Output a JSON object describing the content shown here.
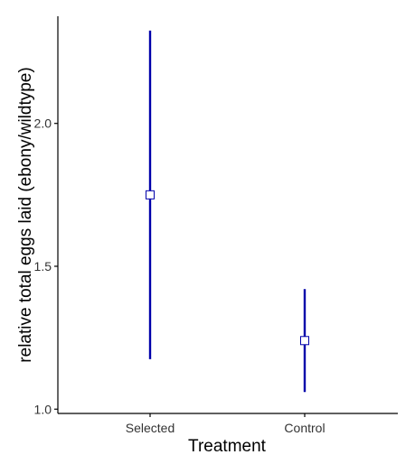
{
  "chart_data": {
    "type": "scatter",
    "title": "",
    "xlabel": "Treatment",
    "ylabel": "relative total eggs laid (ebony/wildtype)",
    "categories": [
      "Selected",
      "Control"
    ],
    "series": [
      {
        "values": [
          1.75,
          1.24
        ],
        "lower": [
          1.175,
          1.06
        ],
        "upper": [
          2.325,
          1.42
        ]
      }
    ],
    "ylim": [
      0.985,
      2.375
    ],
    "yticks": [
      1.0,
      1.5,
      2.0
    ],
    "ytick_labels": [
      "1.0",
      "1.5",
      "2.0"
    ],
    "grid": false,
    "legend": "none",
    "colors": {
      "errorbar": "#0000aa",
      "marker_fill": "#ffffff",
      "marker_stroke": "#0000aa",
      "axis": "#000000",
      "tick_text": "#333333"
    }
  }
}
